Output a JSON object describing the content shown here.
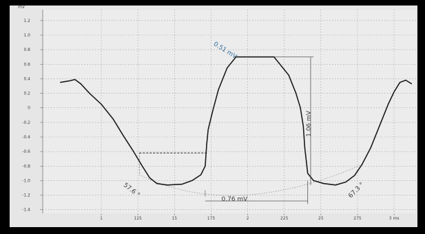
{
  "chart_data": {
    "type": "line",
    "title": "",
    "xlabel": "",
    "ylabel": "",
    "x_axis": {
      "ticks": [
        {
          "x": 1.0,
          "label": "1"
        },
        {
          "x": 1.25,
          "label": "125"
        },
        {
          "x": 1.5,
          "label": "15"
        },
        {
          "x": 1.75,
          "label": "175"
        },
        {
          "x": 2.0,
          "label": "2"
        },
        {
          "x": 2.25,
          "label": "225"
        },
        {
          "x": 2.5,
          "label": "25"
        },
        {
          "x": 2.75,
          "label": "275"
        },
        {
          "x": 3.0,
          "label": "3 ms"
        }
      ],
      "range": [
        0.6,
        3.15
      ]
    },
    "y_axis": {
      "ticks": [
        {
          "y": 1.2,
          "label": "1.2"
        },
        {
          "y": 1.0,
          "label": "1.0"
        },
        {
          "y": 0.8,
          "label": "0.8"
        },
        {
          "y": 0.6,
          "label": "0.6"
        },
        {
          "y": 0.4,
          "label": "0.4"
        },
        {
          "y": 0.2,
          "label": "0.2"
        },
        {
          "y": 0.0,
          "label": "0"
        },
        {
          "y": -0.2,
          "label": "-0.2"
        },
        {
          "y": -0.4,
          "label": "-0.4"
        },
        {
          "y": -0.6,
          "label": "-0.6"
        },
        {
          "y": -0.8,
          "label": "-0.8"
        },
        {
          "y": -1.0,
          "label": "-1.0"
        },
        {
          "y": -1.2,
          "label": "-1.2"
        },
        {
          "y": -1.4,
          "label": "-1.4"
        }
      ],
      "top_unit": "mV",
      "range": [
        -1.45,
        1.35
      ]
    },
    "grid": true,
    "series": [
      {
        "color": "#1a1a1a",
        "points": [
          [
            0.72,
            0.35
          ],
          [
            0.78,
            0.37
          ],
          [
            0.82,
            0.39
          ],
          [
            0.86,
            0.33
          ],
          [
            0.92,
            0.2
          ],
          [
            1.0,
            0.05
          ],
          [
            1.08,
            -0.15
          ],
          [
            1.15,
            -0.38
          ],
          [
            1.22,
            -0.6
          ],
          [
            1.28,
            -0.8
          ],
          [
            1.33,
            -0.96
          ],
          [
            1.38,
            -1.04
          ],
          [
            1.45,
            -1.06
          ],
          [
            1.55,
            -1.05
          ],
          [
            1.62,
            -1.0
          ],
          [
            1.68,
            -0.92
          ],
          [
            1.71,
            -0.8
          ],
          [
            1.72,
            -0.5
          ],
          [
            1.73,
            -0.3
          ],
          [
            1.76,
            -0.05
          ],
          [
            1.8,
            0.25
          ],
          [
            1.86,
            0.55
          ],
          [
            1.92,
            0.7
          ],
          [
            2.0,
            0.7
          ],
          [
            2.1,
            0.7
          ],
          [
            2.18,
            0.7
          ],
          [
            2.22,
            0.6
          ],
          [
            2.28,
            0.45
          ],
          [
            2.33,
            0.2
          ],
          [
            2.36,
            0.0
          ],
          [
            2.38,
            -0.25
          ],
          [
            2.39,
            -0.55
          ],
          [
            2.41,
            -0.9
          ],
          [
            2.45,
            -1.0
          ],
          [
            2.52,
            -1.04
          ],
          [
            2.6,
            -1.06
          ],
          [
            2.67,
            -1.02
          ],
          [
            2.73,
            -0.93
          ],
          [
            2.78,
            -0.78
          ],
          [
            2.84,
            -0.55
          ],
          [
            2.9,
            -0.25
          ],
          [
            2.96,
            0.05
          ],
          [
            3.0,
            0.22
          ],
          [
            3.04,
            0.35
          ],
          [
            3.08,
            0.38
          ],
          [
            3.12,
            0.33
          ]
        ]
      }
    ],
    "annotations": [
      {
        "text": "0.51 mV",
        "x": 1.84,
        "y": 0.77,
        "rotate": 32,
        "color": "#2f6fa0"
      },
      {
        "text": "0.76 mV",
        "x": 1.91,
        "y": -1.28,
        "rotate": 0,
        "color": "#3a3a3a"
      },
      {
        "text": "1.06 mV",
        "x": 2.43,
        "y": -0.22,
        "rotate": -90,
        "color": "#3a3a3a"
      },
      {
        "text": "57.6 °",
        "x": 1.2,
        "y": -1.15,
        "rotate": 38,
        "color": "#3a3a3a"
      },
      {
        "text": "67.3 °",
        "x": 2.75,
        "y": -1.15,
        "rotate": -45,
        "color": "#3a3a3a"
      }
    ]
  }
}
